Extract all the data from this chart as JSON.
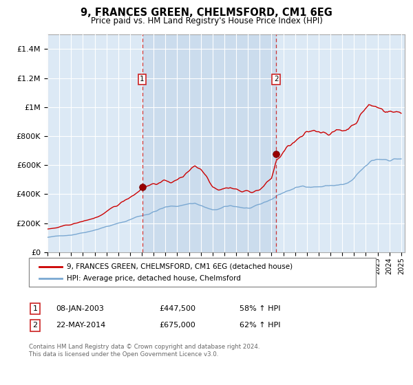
{
  "title": "9, FRANCES GREEN, CHELMSFORD, CM1 6EG",
  "subtitle": "Price paid vs. HM Land Registry's House Price Index (HPI)",
  "background_color": "#ffffff",
  "plot_bg_color": "#dce9f5",
  "grid_color": "#c8d8e8",
  "shaded_color": "#c0d4e8",
  "ylim": [
    0,
    1500000
  ],
  "yticks": [
    0,
    200000,
    400000,
    600000,
    800000,
    1000000,
    1200000,
    1400000
  ],
  "ytick_labels": [
    "£0",
    "£200K",
    "£400K",
    "£600K",
    "£800K",
    "£1M",
    "£1.2M",
    "£1.4M"
  ],
  "xlim_left": 1995.0,
  "xlim_right": 2025.3,
  "sale1_date_x": 2003.03,
  "sale1_price": 447500,
  "sale1_label": "1",
  "sale1_date_str": "08-JAN-2003",
  "sale1_price_str": "£447,500",
  "sale1_hpi_str": "58% ↑ HPI",
  "sale2_date_x": 2014.39,
  "sale2_price": 675000,
  "sale2_label": "2",
  "sale2_date_str": "22-MAY-2014",
  "sale2_price_str": "£675,000",
  "sale2_hpi_str": "62% ↑ HPI",
  "hpi_color": "#7aa8d2",
  "price_color": "#cc0000",
  "marker_color": "#cc0000",
  "dashed_line_color": "#cc3333",
  "legend_label_price": "9, FRANCES GREEN, CHELMSFORD, CM1 6EG (detached house)",
  "legend_label_hpi": "HPI: Average price, detached house, Chelmsford",
  "footer": "Contains HM Land Registry data © Crown copyright and database right 2024.\nThis data is licensed under the Open Government Licence v3.0."
}
